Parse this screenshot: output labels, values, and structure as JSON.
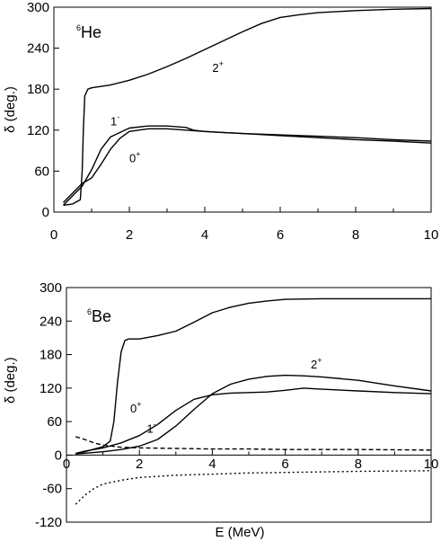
{
  "chart_data": [
    {
      "type": "line",
      "panel_label": {
        "sup": "6",
        "main": "He"
      },
      "ylabel": "δ (deg.)",
      "xlim": [
        0,
        10
      ],
      "ylim": [
        0,
        300
      ],
      "xticks": [
        0,
        2,
        4,
        6,
        8,
        10
      ],
      "yticks": [
        0,
        60,
        120,
        180,
        240,
        300
      ],
      "xtick_labels": [
        "0",
        "2",
        "4",
        "6",
        "8",
        "10"
      ],
      "ytick_labels": [
        "0",
        "60",
        "120",
        "180",
        "240",
        "300"
      ],
      "grid": false,
      "series": [
        {
          "name": "2+",
          "label_main": "2",
          "label_sup": "+",
          "label_at": [
            4.2,
            205
          ],
          "style": "solid",
          "points": [
            [
              0.25,
              10
            ],
            [
              0.5,
              12
            ],
            [
              0.7,
              18
            ],
            [
              0.75,
              60
            ],
            [
              0.78,
              120
            ],
            [
              0.82,
              170
            ],
            [
              0.9,
              180
            ],
            [
              1.0,
              182
            ],
            [
              1.5,
              186
            ],
            [
              2.0,
              193
            ],
            [
              2.5,
              202
            ],
            [
              3.0,
              213
            ],
            [
              3.5,
              225
            ],
            [
              4.0,
              238
            ],
            [
              4.5,
              251
            ],
            [
              5.0,
              264
            ],
            [
              5.5,
              276
            ],
            [
              6.0,
              285
            ],
            [
              6.5,
              289
            ],
            [
              7.0,
              292
            ],
            [
              8.0,
              295
            ],
            [
              9.0,
              297
            ],
            [
              10.0,
              298
            ]
          ]
        },
        {
          "name": "1-",
          "label_main": "1",
          "label_sup": "-",
          "label_at": [
            1.5,
            127
          ],
          "style": "solid",
          "points": [
            [
              0.25,
              10
            ],
            [
              0.5,
              24
            ],
            [
              0.75,
              38
            ],
            [
              1.0,
              62
            ],
            [
              1.25,
              92
            ],
            [
              1.5,
              110
            ],
            [
              2.0,
              123
            ],
            [
              2.5,
              126
            ],
            [
              3.0,
              126
            ],
            [
              3.5,
              124
            ],
            [
              3.7,
              120
            ],
            [
              4.0,
              118
            ],
            [
              5.0,
              115
            ],
            [
              6.0,
              113
            ],
            [
              7.0,
              111
            ],
            [
              8.0,
              109
            ],
            [
              9.0,
              106
            ],
            [
              10.0,
              104
            ]
          ]
        },
        {
          "name": "0+",
          "label_main": "0",
          "label_sup": "+",
          "label_at": [
            2.0,
            73
          ],
          "style": "solid",
          "points": [
            [
              0.25,
              14
            ],
            [
              0.5,
              28
            ],
            [
              0.75,
              42
            ],
            [
              1.0,
              50
            ],
            [
              1.25,
              70
            ],
            [
              1.5,
              92
            ],
            [
              1.75,
              108
            ],
            [
              2.0,
              118
            ],
            [
              2.5,
              122
            ],
            [
              3.0,
              122
            ],
            [
              3.5,
              120
            ],
            [
              4.0,
              118
            ],
            [
              5.0,
              115
            ],
            [
              6.0,
              112
            ],
            [
              7.0,
              109
            ],
            [
              8.0,
              106
            ],
            [
              9.0,
              104
            ],
            [
              10.0,
              101
            ]
          ]
        }
      ]
    },
    {
      "type": "line",
      "panel_label": {
        "sup": "6",
        "main": "Be"
      },
      "ylabel": "δ (deg.)",
      "xlabel": "E (MeV)",
      "xlim": [
        0,
        10
      ],
      "ylim": [
        -120,
        300
      ],
      "xticks": [
        0,
        2,
        4,
        6,
        8,
        10
      ],
      "yticks": [
        -120,
        -60,
        0,
        60,
        120,
        180,
        240,
        300
      ],
      "xtick_labels": [
        "0",
        "2",
        "4",
        "6",
        "8",
        "10"
      ],
      "ytick_labels": [
        "-120",
        "-60",
        "0",
        "60",
        "120",
        "180",
        "240",
        "300"
      ],
      "grid": false,
      "series": [
        {
          "name": "0+",
          "label_main": "0",
          "label_sup": "+",
          "label_at": [
            1.75,
            76
          ],
          "style": "solid",
          "points": [
            [
              0.25,
              3
            ],
            [
              0.5,
              6
            ],
            [
              1.0,
              15
            ],
            [
              1.2,
              25
            ],
            [
              1.3,
              60
            ],
            [
              1.4,
              130
            ],
            [
              1.5,
              185
            ],
            [
              1.6,
              205
            ],
            [
              1.7,
              208
            ],
            [
              2.0,
              208
            ],
            [
              2.5,
              214
            ],
            [
              3.0,
              222
            ],
            [
              3.5,
              238
            ],
            [
              4.0,
              255
            ],
            [
              4.5,
              265
            ],
            [
              5.0,
              272
            ],
            [
              5.5,
              276
            ],
            [
              6.0,
              279
            ],
            [
              7.0,
              280
            ],
            [
              8.0,
              280
            ],
            [
              9.0,
              280
            ],
            [
              10.0,
              280
            ]
          ]
        },
        {
          "name": "1-",
          "label_main": "1",
          "label_sup": "-",
          "label_at": [
            2.2,
            40
          ],
          "style": "solid",
          "points": [
            [
              0.25,
              3
            ],
            [
              0.5,
              7
            ],
            [
              1.0,
              13
            ],
            [
              1.5,
              22
            ],
            [
              2.0,
              35
            ],
            [
              2.5,
              55
            ],
            [
              3.0,
              80
            ],
            [
              3.5,
              100
            ],
            [
              4.0,
              108
            ],
            [
              4.5,
              111
            ],
            [
              5.0,
              112
            ],
            [
              5.5,
              113
            ],
            [
              6.0,
              116
            ],
            [
              6.5,
              120
            ],
            [
              7.0,
              118
            ],
            [
              8.0,
              115
            ],
            [
              9.0,
              112
            ],
            [
              10.0,
              110
            ]
          ]
        },
        {
          "name": "2+",
          "label_main": "2",
          "label_sup": "+",
          "label_at": [
            6.7,
            155
          ],
          "style": "solid",
          "points": [
            [
              0.25,
              2
            ],
            [
              1.0,
              6
            ],
            [
              1.5,
              10
            ],
            [
              2.0,
              16
            ],
            [
              2.5,
              28
            ],
            [
              3.0,
              52
            ],
            [
              3.5,
              82
            ],
            [
              4.0,
              110
            ],
            [
              4.5,
              127
            ],
            [
              5.0,
              136
            ],
            [
              5.5,
              141
            ],
            [
              6.0,
              143
            ],
            [
              6.5,
              142
            ],
            [
              7.0,
              140
            ],
            [
              8.0,
              134
            ],
            [
              9.0,
              124
            ],
            [
              10.0,
              115
            ]
          ]
        },
        {
          "name": "",
          "style": "dashed",
          "points": [
            [
              0.25,
              33
            ],
            [
              0.5,
              28
            ],
            [
              0.75,
              22
            ],
            [
              1.0,
              18
            ],
            [
              1.5,
              14
            ],
            [
              2.0,
              13
            ],
            [
              3.0,
              12
            ],
            [
              4.0,
              11
            ],
            [
              5.0,
              11
            ],
            [
              6.0,
              10
            ],
            [
              8.0,
              10
            ],
            [
              10.0,
              9
            ]
          ]
        },
        {
          "name": "",
          "style": "dotted",
          "points": [
            [
              0.25,
              -88
            ],
            [
              0.5,
              -72
            ],
            [
              0.75,
              -60
            ],
            [
              1.0,
              -52
            ],
            [
              1.5,
              -45
            ],
            [
              2.0,
              -40
            ],
            [
              3.0,
              -36
            ],
            [
              4.0,
              -34
            ],
            [
              5.0,
              -32
            ],
            [
              6.0,
              -31
            ],
            [
              8.0,
              -29
            ],
            [
              10.0,
              -28
            ]
          ]
        }
      ]
    }
  ]
}
